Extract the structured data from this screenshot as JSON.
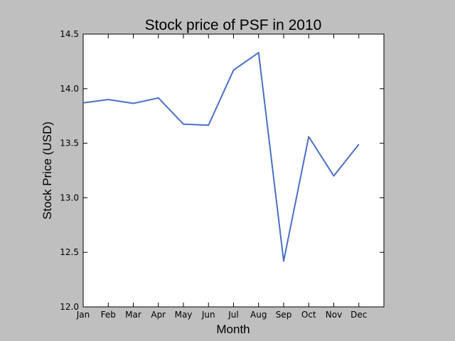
{
  "chart_data": {
    "type": "line",
    "title": "Stock price of PSF in 2010",
    "xlabel": "Month",
    "ylabel": "Stock Price (USD)",
    "categories": [
      "Jan",
      "Feb",
      "Mar",
      "Apr",
      "May",
      "Jun",
      "Jul",
      "Aug",
      "Sep",
      "Oct",
      "Nov",
      "Dec"
    ],
    "series": [
      {
        "values": [
          13.87,
          13.9,
          13.865,
          13.915,
          13.675,
          13.665,
          14.17,
          14.33,
          12.42,
          13.56,
          13.2,
          13.49
        ],
        "color": "#4a6fc8"
      }
    ],
    "xlim": [
      0,
      12
    ],
    "ylim": [
      12.0,
      14.5
    ],
    "yticks": [
      "12.0",
      "12.5",
      "13.0",
      "13.5",
      "14.0",
      "14.5"
    ],
    "grid": false,
    "legend": "none"
  }
}
